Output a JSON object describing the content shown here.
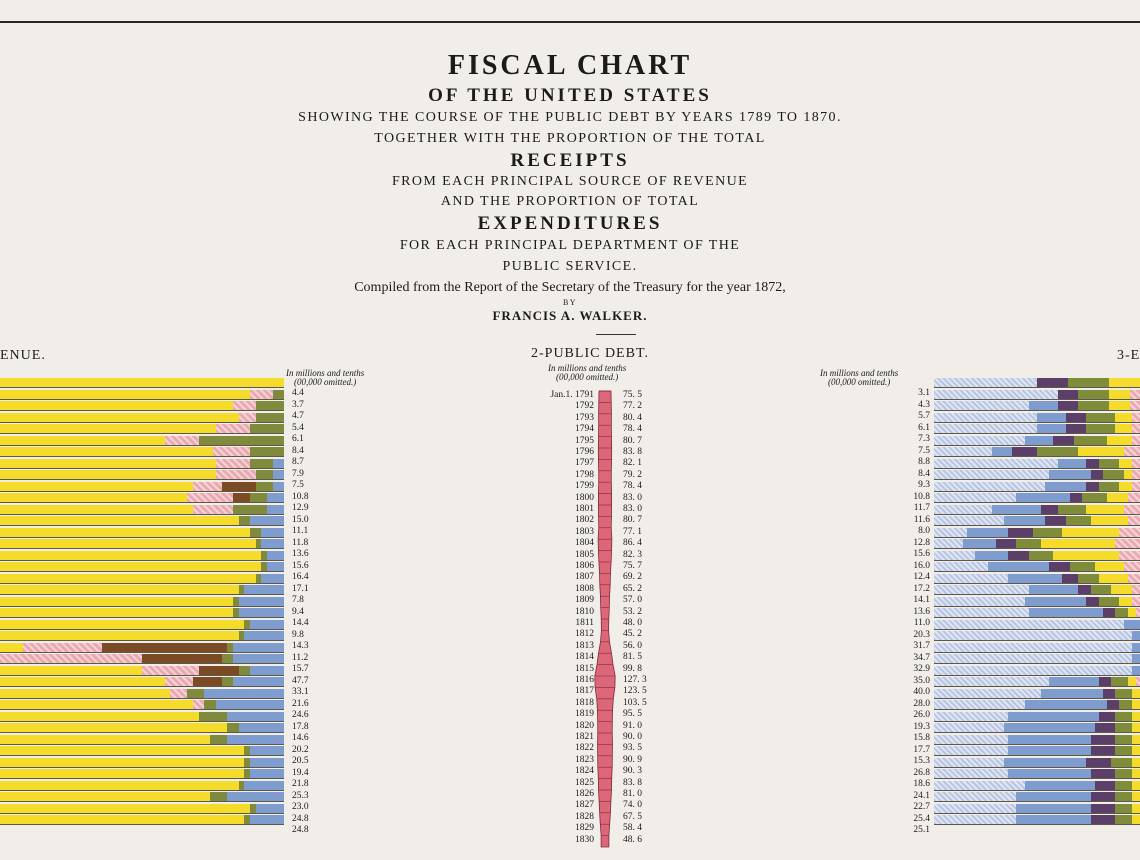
{
  "header": {
    "title": "FISCAL CHART",
    "line2": "OF THE UNITED STATES",
    "line3": "SHOWING THE COURSE OF THE PUBLIC DEBT BY YEARS 1789 TO 1870.",
    "line4": "TOGETHER WITH THE PROPORTION OF THE TOTAL",
    "line5": "RECEIPTS",
    "line6": "FROM EACH PRINCIPAL SOURCE OF REVENUE",
    "line7": "AND THE PROPORTION OF TOTAL",
    "line8": "EXPENDITURES",
    "line9": "FOR EACH PRINCIPAL DEPARTMENT OF THE",
    "line10": "PUBLIC SERVICE.",
    "line11": "Compiled from the Report of the Secretary of the Treasury for the year 1872,",
    "line12": "BY",
    "author": "FRANCIS A. WALKER."
  },
  "colors": {
    "yellow": "#f5dc2a",
    "pink": "#e9a9b0",
    "olive": "#7f8a3c",
    "brown": "#7b4b26",
    "blue": "#7e9ccd",
    "lightblue": "#b8c5e2",
    "debt": "#de6679",
    "purple": "#5c3f68",
    "green": "#7f8d3b"
  },
  "chart_data": [
    {
      "type": "bar",
      "title": "ENUE.",
      "note_line1": "In millions and tenths",
      "note_line2": "(00,000 omitted.)",
      "values": [
        4.4,
        3.7,
        4.7,
        5.4,
        6.1,
        8.4,
        8.7,
        7.9,
        7.5,
        10.8,
        12.9,
        15.0,
        11.1,
        11.8,
        13.6,
        15.6,
        16.4,
        17.1,
        7.8,
        9.4,
        14.4,
        9.8,
        14.3,
        11.2,
        15.7,
        47.7,
        33.1,
        21.6,
        24.6,
        17.8,
        14.6,
        20.2,
        20.5,
        19.4,
        21.8,
        25.3,
        23.0,
        24.8,
        24.8
      ],
      "proportions_left_to_right": [
        "yellow",
        "pink",
        "brown",
        "olive",
        "blue"
      ],
      "shares": [
        [
          1,
          0,
          0,
          0,
          0
        ],
        [
          0.88,
          0.08,
          0,
          0.04,
          0
        ],
        [
          0.82,
          0.08,
          0,
          0.1,
          0
        ],
        [
          0.84,
          0.06,
          0,
          0.1,
          0
        ],
        [
          0.76,
          0.12,
          0,
          0.12,
          0
        ],
        [
          0.58,
          0.12,
          0,
          0.3,
          0
        ],
        [
          0.75,
          0.13,
          0,
          0.12,
          0
        ],
        [
          0.76,
          0.12,
          0,
          0.08,
          0.04
        ],
        [
          0.76,
          0.14,
          0,
          0.06,
          0.04
        ],
        [
          0.68,
          0.1,
          0.12,
          0.06,
          0.04
        ],
        [
          0.66,
          0.16,
          0.06,
          0.06,
          0.06
        ],
        [
          0.68,
          0.14,
          0,
          0.12,
          0.06
        ],
        [
          0.84,
          0,
          0,
          0.04,
          0.12
        ],
        [
          0.88,
          0,
          0,
          0.04,
          0.08
        ],
        [
          0.9,
          0,
          0,
          0.02,
          0.08
        ],
        [
          0.92,
          0,
          0,
          0.02,
          0.06
        ],
        [
          0.92,
          0,
          0,
          0.02,
          0.06
        ],
        [
          0.9,
          0,
          0,
          0.02,
          0.08
        ],
        [
          0.84,
          0,
          0,
          0.02,
          0.14
        ],
        [
          0.82,
          0,
          0,
          0.02,
          0.16
        ],
        [
          0.82,
          0,
          0,
          0.02,
          0.16
        ],
        [
          0.86,
          0,
          0,
          0.02,
          0.12
        ],
        [
          0.84,
          0,
          0,
          0.02,
          0.14
        ],
        [
          0.08,
          0.28,
          0.44,
          0.02,
          0.18
        ],
        [
          0,
          0.5,
          0.28,
          0.04,
          0.18
        ],
        [
          0.5,
          0.2,
          0.14,
          0.04,
          0.12
        ],
        [
          0.58,
          0.1,
          0.1,
          0.04,
          0.18
        ],
        [
          0.6,
          0.06,
          0,
          0.06,
          0.28
        ],
        [
          0.68,
          0.04,
          0,
          0.04,
          0.24
        ],
        [
          0.7,
          0,
          0,
          0.1,
          0.2
        ],
        [
          0.8,
          0,
          0,
          0.04,
          0.16
        ],
        [
          0.74,
          0,
          0,
          0.06,
          0.2
        ],
        [
          0.86,
          0,
          0,
          0.02,
          0.12
        ],
        [
          0.86,
          0,
          0,
          0.02,
          0.12
        ],
        [
          0.86,
          0,
          0,
          0.02,
          0.12
        ],
        [
          0.84,
          0,
          0,
          0.02,
          0.14
        ],
        [
          0.74,
          0,
          0,
          0.06,
          0.2
        ],
        [
          0.88,
          0,
          0,
          0.02,
          0.1
        ],
        [
          0.86,
          0,
          0,
          0.02,
          0.12
        ]
      ]
    },
    {
      "type": "bar",
      "title": "2-PUBLIC DEBT.",
      "note_line1": "In millions and tenths",
      "note_line2": "(00,000 omitted.)",
      "first_year_label": "Jan.1. 1791",
      "categories": [
        "1791",
        "1792",
        "1793",
        "1794",
        "1795",
        "1796",
        "1797",
        "1798",
        "1799",
        "1800",
        "1801",
        "1802",
        "1803",
        "1804",
        "1805",
        "1806",
        "1807",
        "1808",
        "1809",
        "1810",
        "1811",
        "1812",
        "1813",
        "1814",
        "1815",
        "1816",
        "1817",
        "1818",
        "1819",
        "1820",
        "1821",
        "1822",
        "1823",
        "1824",
        "1825",
        "1826",
        "1827",
        "1828",
        "1829",
        "1830"
      ],
      "values": [
        75.5,
        77.2,
        80.4,
        78.4,
        80.7,
        83.8,
        82.1,
        79.2,
        78.4,
        83.0,
        83.0,
        80.7,
        77.1,
        86.4,
        82.3,
        75.7,
        69.2,
        65.2,
        57.0,
        53.2,
        48.0,
        45.2,
        56.0,
        81.5,
        99.8,
        127.3,
        123.5,
        103.5,
        95.5,
        91.0,
        90.0,
        93.5,
        90.9,
        90.3,
        83.8,
        81.0,
        74.0,
        67.5,
        58.4,
        48.6
      ]
    },
    {
      "type": "bar",
      "title": "3-E",
      "note_line1": "In millions and tenths",
      "note_line2": "(00,000 omitted.)",
      "values": [
        3.1,
        4.3,
        5.7,
        6.1,
        7.3,
        7.5,
        8.8,
        8.4,
        9.3,
        10.8,
        11.7,
        11.6,
        8.0,
        12.8,
        15.6,
        16.0,
        12.4,
        17.2,
        14.1,
        13.6,
        11.0,
        20.3,
        31.7,
        34.7,
        32.9,
        35.0,
        40.0,
        28.0,
        26.0,
        19.3,
        15.8,
        17.7,
        15.3,
        26.8,
        18.6,
        24.1,
        22.7,
        25.4,
        25.1
      ],
      "proportions_left_to_right": [
        "lightblue",
        "blue",
        "purple",
        "green",
        "yellow",
        "pink"
      ],
      "shares": [
        [
          0.5,
          0,
          0.15,
          0.2,
          0.15,
          0
        ],
        [
          0.6,
          0,
          0.1,
          0.15,
          0.1,
          0.05
        ],
        [
          0.46,
          0.14,
          0.1,
          0.15,
          0.1,
          0.05
        ],
        [
          0.5,
          0.14,
          0.1,
          0.14,
          0.08,
          0.04
        ],
        [
          0.5,
          0.14,
          0.1,
          0.14,
          0.08,
          0.04
        ],
        [
          0.44,
          0.14,
          0.1,
          0.16,
          0.12,
          0.04
        ],
        [
          0.28,
          0.1,
          0.12,
          0.2,
          0.22,
          0.08
        ],
        [
          0.6,
          0.14,
          0.06,
          0.1,
          0.06,
          0.04
        ],
        [
          0.56,
          0.2,
          0.06,
          0.1,
          0.04,
          0.04
        ],
        [
          0.54,
          0.2,
          0.06,
          0.1,
          0.06,
          0.04
        ],
        [
          0.4,
          0.26,
          0.06,
          0.12,
          0.1,
          0.06
        ],
        [
          0.28,
          0.24,
          0.08,
          0.14,
          0.18,
          0.08
        ],
        [
          0.34,
          0.2,
          0.1,
          0.12,
          0.18,
          0.06
        ],
        [
          0.16,
          0.2,
          0.12,
          0.14,
          0.28,
          0.1
        ],
        [
          0.14,
          0.16,
          0.1,
          0.12,
          0.36,
          0.12
        ],
        [
          0.2,
          0.16,
          0.1,
          0.12,
          0.32,
          0.1
        ],
        [
          0.26,
          0.3,
          0.1,
          0.12,
          0.14,
          0.08
        ],
        [
          0.36,
          0.26,
          0.08,
          0.1,
          0.14,
          0.06
        ],
        [
          0.46,
          0.24,
          0.06,
          0.1,
          0.1,
          0.04
        ],
        [
          0.44,
          0.3,
          0.06,
          0.1,
          0.06,
          0.04
        ],
        [
          0.46,
          0.36,
          0.06,
          0.06,
          0.04,
          0.02
        ],
        [
          0.92,
          0.08,
          0,
          0,
          0,
          0
        ],
        [
          0.96,
          0.04,
          0,
          0,
          0,
          0
        ],
        [
          0.96,
          0.04,
          0,
          0,
          0,
          0
        ],
        [
          0.96,
          0.04,
          0,
          0,
          0,
          0
        ],
        [
          0.96,
          0.04,
          0,
          0,
          0,
          0
        ],
        [
          0.56,
          0.24,
          0.06,
          0.08,
          0.04,
          0.02
        ],
        [
          0.52,
          0.3,
          0.06,
          0.08,
          0.04,
          0
        ],
        [
          0.44,
          0.4,
          0.06,
          0.06,
          0.04,
          0
        ],
        [
          0.36,
          0.44,
          0.08,
          0.08,
          0.04,
          0
        ],
        [
          0.34,
          0.44,
          0.1,
          0.08,
          0.04,
          0
        ],
        [
          0.36,
          0.4,
          0.12,
          0.08,
          0.04,
          0
        ],
        [
          0.36,
          0.4,
          0.12,
          0.08,
          0.04,
          0
        ],
        [
          0.34,
          0.4,
          0.12,
          0.1,
          0.04,
          0
        ],
        [
          0.36,
          0.4,
          0.12,
          0.08,
          0.04,
          0
        ],
        [
          0.44,
          0.34,
          0.1,
          0.08,
          0.04,
          0
        ],
        [
          0.4,
          0.36,
          0.12,
          0.08,
          0.04,
          0
        ],
        [
          0.4,
          0.36,
          0.12,
          0.08,
          0.04,
          0
        ],
        [
          0.4,
          0.36,
          0.12,
          0.08,
          0.04,
          0
        ]
      ]
    }
  ]
}
